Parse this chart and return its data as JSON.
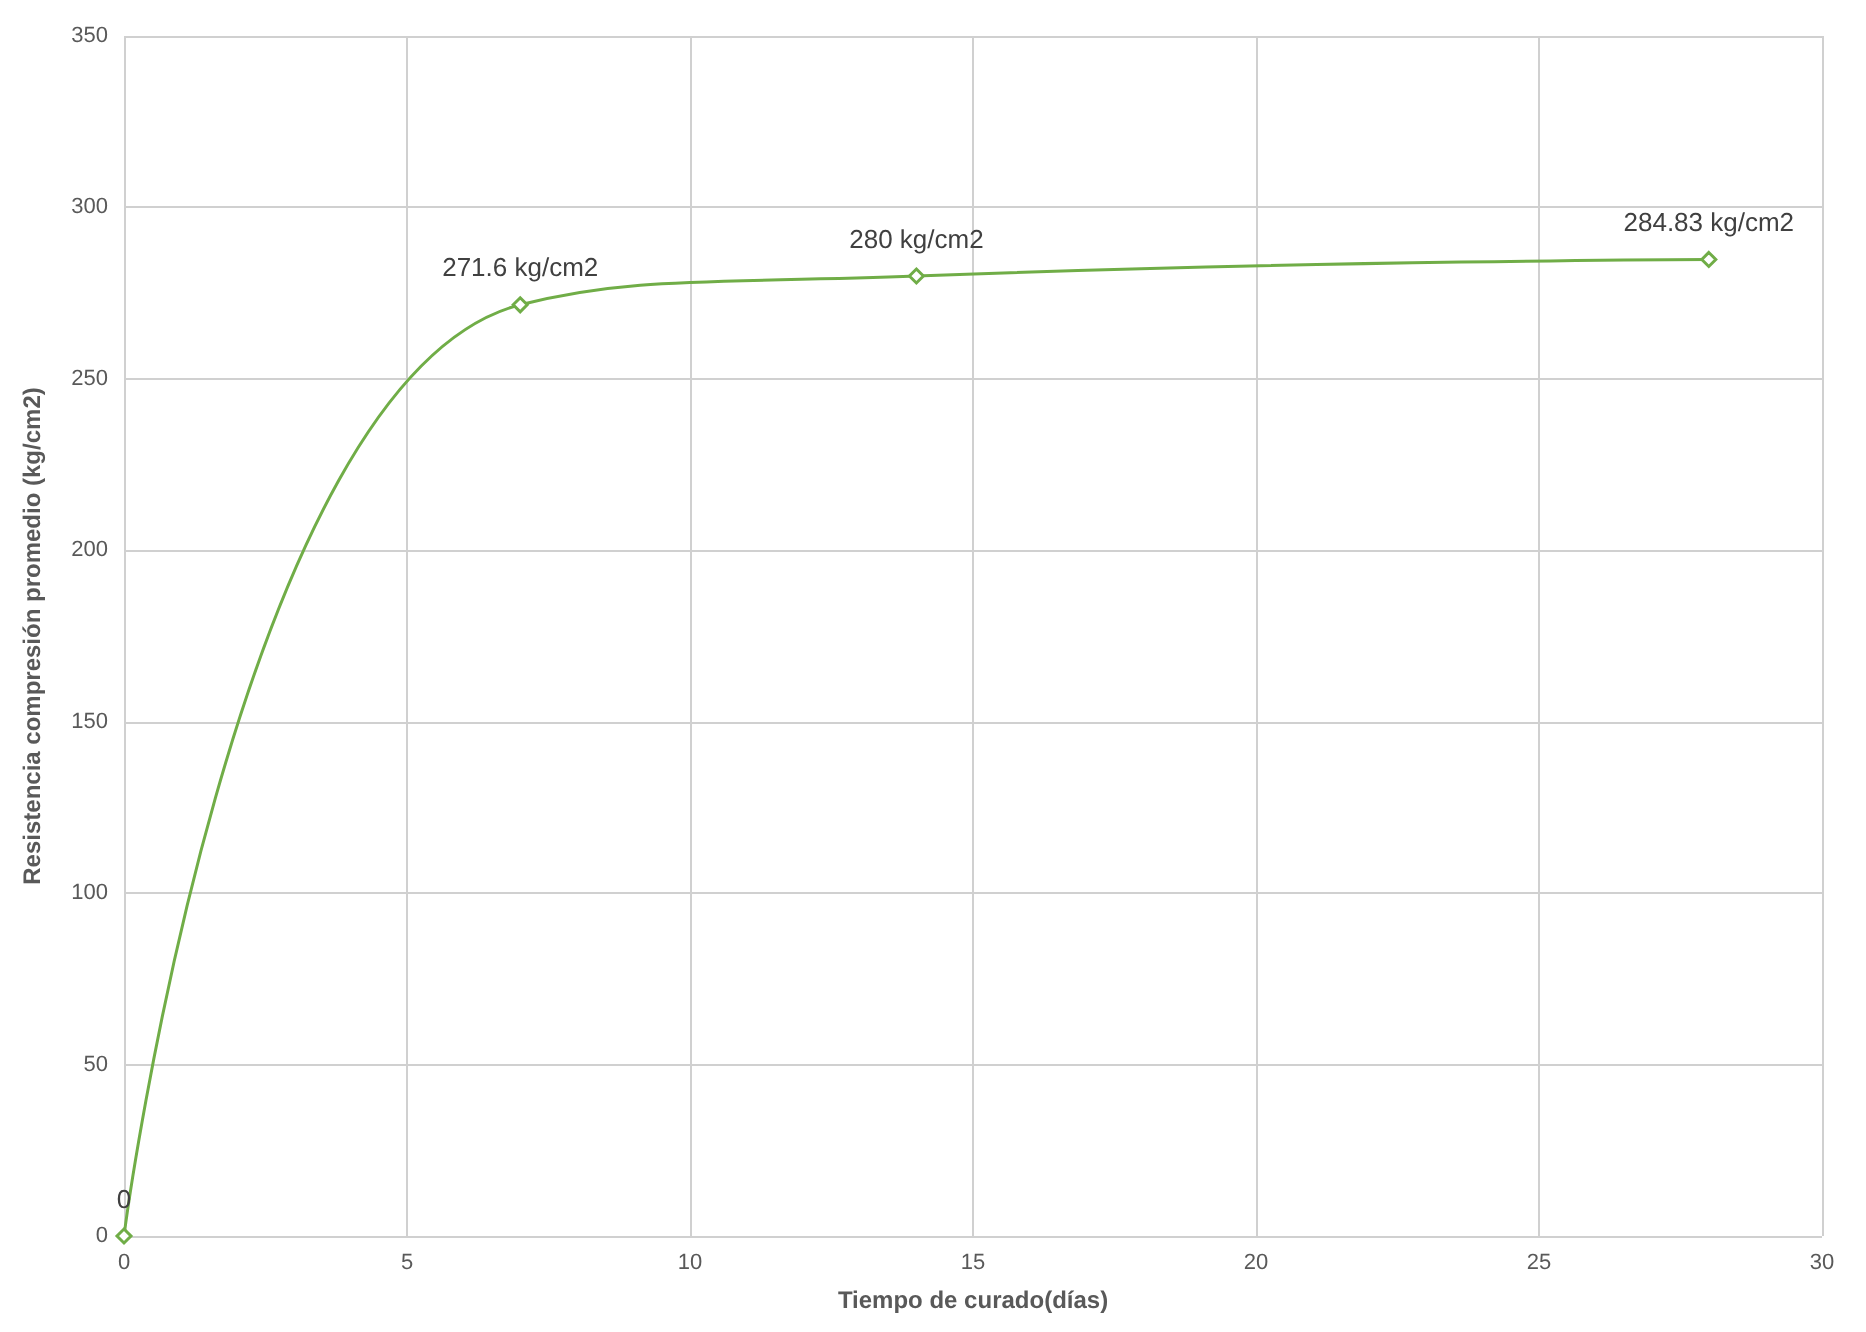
{
  "chart_data": {
    "type": "line",
    "xlabel": "Tiempo de curado(días)",
    "ylabel": "Resistencia compresión promedio (kg/cm2)",
    "x": [
      0,
      7,
      14,
      28
    ],
    "series": [
      {
        "color": "#70ad47",
        "values": [
          0,
          271.6,
          280,
          284.83
        ],
        "value_labels": [
          "0",
          "271.6 kg/cm2",
          "280 kg/cm2",
          "284.83 kg/cm2"
        ]
      }
    ],
    "xlim": [
      0,
      30
    ],
    "xticks": [
      0,
      5,
      10,
      15,
      20,
      25,
      30
    ],
    "ylim": [
      0,
      350
    ],
    "yticks": [
      0,
      50,
      100,
      150,
      200,
      250,
      300,
      350
    ],
    "grid": true,
    "marker": "diamond",
    "line_style": "solid"
  }
}
